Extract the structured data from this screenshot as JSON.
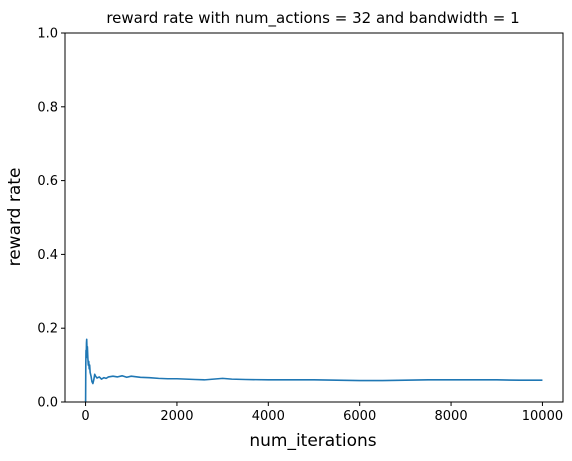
{
  "chart_data": {
    "type": "line",
    "title": "reward rate with num_actions = 32 and bandwidth = 1",
    "xlabel": "num_iterations",
    "ylabel": "reward rate",
    "xlim": [
      -450,
      10450
    ],
    "ylim": [
      0,
      1
    ],
    "xticks": [
      0,
      2000,
      4000,
      6000,
      8000,
      10000
    ],
    "xtick_labels": [
      "0",
      "2000",
      "4000",
      "6000",
      "8000",
      "10000"
    ],
    "yticks": [
      0,
      0.2,
      0.4,
      0.6,
      0.8,
      1.0
    ],
    "ytick_labels": [
      "0.0",
      "0.2",
      "0.4",
      "0.6",
      "0.8",
      "1.0"
    ],
    "grid": false,
    "color": "#1f77b4",
    "series": [
      {
        "x": [
          1,
          5,
          10,
          15,
          20,
          25,
          30,
          35,
          40,
          50,
          60,
          70,
          80,
          90,
          100,
          120,
          140,
          160,
          180,
          200,
          220,
          250,
          300,
          350,
          400,
          450,
          500,
          600,
          700,
          800,
          900,
          1000,
          1200,
          1400,
          1600,
          1800,
          2000,
          2200,
          2400,
          2600,
          2800,
          3000,
          3200,
          3500,
          4000,
          4500,
          5000,
          5500,
          6000,
          6500,
          7000,
          7500,
          8000,
          8500,
          9000,
          9500,
          10000
        ],
        "y": [
          0.0,
          0.1,
          0.14,
          0.12,
          0.16,
          0.17,
          0.15,
          0.13,
          0.15,
          0.12,
          0.1,
          0.11,
          0.09,
          0.1,
          0.08,
          0.07,
          0.055,
          0.05,
          0.06,
          0.075,
          0.07,
          0.065,
          0.068,
          0.062,
          0.066,
          0.064,
          0.068,
          0.07,
          0.068,
          0.071,
          0.067,
          0.07,
          0.067,
          0.066,
          0.064,
          0.063,
          0.063,
          0.062,
          0.061,
          0.06,
          0.062,
          0.064,
          0.062,
          0.061,
          0.06,
          0.06,
          0.06,
          0.059,
          0.058,
          0.058,
          0.059,
          0.06,
          0.06,
          0.06,
          0.06,
          0.059,
          0.059
        ]
      }
    ]
  }
}
